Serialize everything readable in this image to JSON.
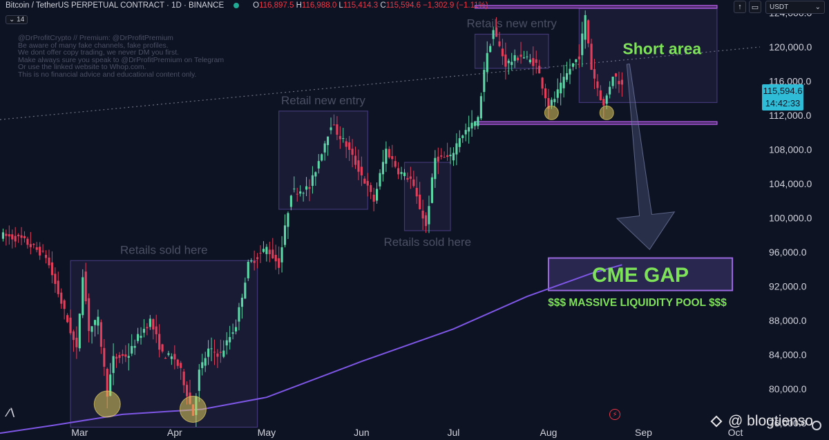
{
  "header": {
    "symbol": "Bitcoin / TetherUS PERPETUAL CONTRACT · 1D · BINANCE",
    "open_label": "O",
    "open": "116,897.5",
    "high_label": "H",
    "high": "116,988.0",
    "low_label": "L",
    "low": "115,414.3",
    "close_label": "C",
    "close": "115,594.6",
    "change": "−1,302.9 (−1.11%)",
    "indicator_badge": "14",
    "currency": "USDT"
  },
  "watermark_lines": [
    "@DrProfitCrypto // Premium: @DrProfitPremium",
    "Be aware of many fake channels, fake profiles.",
    "We dont offer copy trading, we never DM you first.",
    "Make always sure you speak to @DrProfitPremium on Telegram",
    "Or use the linked website to Whop.com.",
    "This is no financial advice and educational content only."
  ],
  "price_tag": {
    "price": "115,594.6",
    "countdown": "14:42:33"
  },
  "credit": "@ blogtienso",
  "colors": {
    "background": "#0e1324",
    "bull": "#5ad8a6",
    "bear": "#e53e5a",
    "box": "#7b5fd0",
    "annotation_green": "#7fe35a",
    "ma_line": "#7e57e6",
    "dashed_line": "#6f7383",
    "price_tag": "#2fbcd6"
  },
  "chart_data": {
    "type": "candlestick",
    "title": "Bitcoin / TetherUS PERPETUAL CONTRACT · 1D · BINANCE",
    "y_axis": {
      "ticks": [
        76000,
        80000,
        84000,
        88000,
        92000,
        96000,
        100000,
        104000,
        108000,
        112000,
        116000,
        120000,
        124000
      ],
      "tick_labels": [
        "76,000.0",
        "80,000.0",
        "84,000.0",
        "88,000.0",
        "92,000.0",
        "96,000.0",
        "100,000.0",
        "104,000.0",
        "108,000.0",
        "112,000.0",
        "116,000.0",
        "120,000.0",
        "124,000.0"
      ],
      "range": [
        74000,
        125500
      ]
    },
    "x_axis": {
      "months": [
        "Mar",
        "Apr",
        "May",
        "Jun",
        "Jul",
        "Aug",
        "Sep",
        "Oct"
      ],
      "month_starts": [
        "2025-03-01",
        "2025-04-01",
        "2025-05-01",
        "2025-06-01",
        "2025-07-01",
        "2025-08-01",
        "2025-09-01",
        "2025-10-01"
      ],
      "range": [
        "2025-02-03",
        "2025-10-09"
      ]
    },
    "price_path": [
      [
        "2025-02-03",
        98000
      ],
      [
        "2025-02-10",
        97500
      ],
      [
        "2025-02-18",
        95500
      ],
      [
        "2025-02-24",
        89000
      ],
      [
        "2025-02-28",
        84500
      ],
      [
        "2025-03-02",
        93500
      ],
      [
        "2025-03-04",
        87000
      ],
      [
        "2025-03-07",
        88000
      ],
      [
        "2025-03-10",
        79500
      ],
      [
        "2025-03-12",
        83500
      ],
      [
        "2025-03-17",
        84000
      ],
      [
        "2025-03-20",
        86000
      ],
      [
        "2025-03-24",
        88000
      ],
      [
        "2025-03-28",
        84000
      ],
      [
        "2025-04-01",
        83500
      ],
      [
        "2025-04-03",
        82000
      ],
      [
        "2025-04-07",
        77000
      ],
      [
        "2025-04-09",
        82000
      ],
      [
        "2025-04-12",
        84500
      ],
      [
        "2025-04-16",
        84000
      ],
      [
        "2025-04-21",
        87500
      ],
      [
        "2025-04-25",
        94500
      ],
      [
        "2025-05-01",
        96500
      ],
      [
        "2025-05-05",
        94500
      ],
      [
        "2025-05-09",
        103000
      ],
      [
        "2025-05-15",
        103500
      ],
      [
        "2025-05-22",
        111000
      ],
      [
        "2025-05-27",
        108500
      ],
      [
        "2025-06-01",
        105000
      ],
      [
        "2025-06-05",
        102000
      ],
      [
        "2025-06-09",
        108000
      ],
      [
        "2025-06-13",
        105500
      ],
      [
        "2025-06-17",
        104500
      ],
      [
        "2025-06-22",
        99000
      ],
      [
        "2025-06-25",
        107000
      ],
      [
        "2025-06-30",
        107000
      ],
      [
        "2025-07-03",
        109500
      ],
      [
        "2025-07-09",
        111500
      ],
      [
        "2025-07-11",
        117500
      ],
      [
        "2025-07-14",
        122000
      ],
      [
        "2025-07-18",
        118000
      ],
      [
        "2025-07-23",
        119000
      ],
      [
        "2025-07-28",
        118000
      ],
      [
        "2025-08-01",
        113000
      ],
      [
        "2025-08-03",
        114000
      ],
      [
        "2025-08-08",
        117500
      ],
      [
        "2025-08-11",
        119000
      ],
      [
        "2025-08-13",
        123500
      ],
      [
        "2025-08-15",
        117500
      ],
      [
        "2025-08-19",
        113000
      ],
      [
        "2025-08-22",
        116800
      ],
      [
        "2025-08-25",
        115594.6
      ]
    ],
    "moving_average_path": [
      [
        "2025-02-03",
        74800
      ],
      [
        "2025-02-20",
        75700
      ],
      [
        "2025-03-15",
        77000
      ],
      [
        "2025-04-10",
        77600
      ],
      [
        "2025-05-01",
        79000
      ],
      [
        "2025-06-01",
        83200
      ],
      [
        "2025-07-01",
        87000
      ],
      [
        "2025-07-25",
        90800
      ],
      [
        "2025-08-15",
        93500
      ],
      [
        "2025-08-25",
        94500
      ]
    ],
    "current_price": 115594.6,
    "countdown": "14:42:33",
    "annotations": [
      {
        "type": "box",
        "label": "Retails sold here",
        "x0": "2025-02-26",
        "x1": "2025-04-28",
        "y0": 75500,
        "y1": 95000
      },
      {
        "type": "box",
        "label": "Retail new entry",
        "x0": "2025-05-05",
        "x1": "2025-06-03",
        "y0": 101000,
        "y1": 112500
      },
      {
        "type": "box",
        "label": "Retails sold here",
        "x0": "2025-06-15",
        "x1": "2025-06-30",
        "y0": 98500,
        "y1": 106500
      },
      {
        "type": "box",
        "label": "Retails new entry",
        "x0": "2025-07-08",
        "x1": "2025-08-01",
        "y0": 117500,
        "y1": 121500
      },
      {
        "type": "box",
        "label": "Short area",
        "x0": "2025-08-11",
        "x1": "2025-09-25",
        "y0": 113500,
        "y1": 124500
      },
      {
        "type": "box",
        "label": "CME GAP",
        "x0": "2025-08-01",
        "x1": "2025-09-30",
        "y0": 91500,
        "y1": 95300
      },
      {
        "type": "text",
        "label": "$$$ MASSIVE LIQUIDITY POOL $$$",
        "x": "2025-08-30",
        "y": 89700
      },
      {
        "type": "hline",
        "x0": "2025-07-08",
        "x1": "2025-09-25",
        "y": 111100
      },
      {
        "type": "hline",
        "x0": "2025-07-08",
        "x1": "2025-09-25",
        "y": 124700
      },
      {
        "type": "arrow",
        "from": [
          "2025-08-27",
          118000
        ],
        "to": [
          "2025-09-03",
          96300
        ]
      },
      {
        "type": "circle",
        "x": "2025-03-10",
        "y": 78200
      },
      {
        "type": "circle",
        "x": "2025-04-07",
        "y": 77600
      },
      {
        "type": "circle",
        "x": "2025-08-02",
        "y": 112300
      },
      {
        "type": "circle",
        "x": "2025-08-20",
        "y": 112300
      }
    ],
    "trendline": {
      "style": "dotted",
      "from": [
        "2025-02-03",
        111500
      ],
      "to": [
        "2025-10-09",
        120000
      ]
    },
    "grid": false,
    "legend": "none"
  }
}
